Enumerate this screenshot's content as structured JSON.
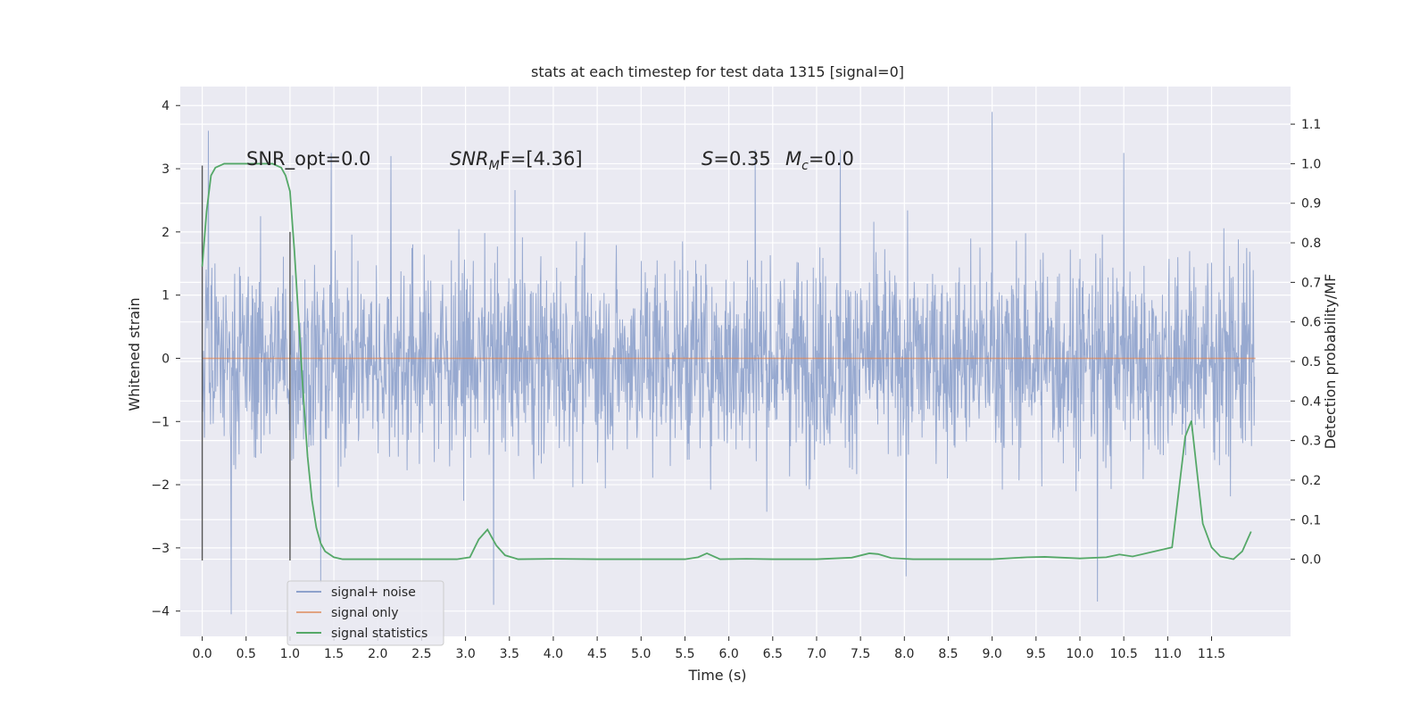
{
  "chart_data": {
    "type": "line",
    "title": "stats at each timestep for test data 1315 [signal=0]",
    "xlabel": "Time (s)",
    "ylabel": "Whitened strain",
    "y2label": "Detection probability/MF",
    "xlim": [
      -0.25,
      12.4
    ],
    "ylim": [
      -4.4,
      4.3
    ],
    "y2lim": [
      -0.195,
      1.195
    ],
    "x_ticks": [
      "0.0",
      "0.5",
      "1.0",
      "1.5",
      "2.0",
      "2.5",
      "3.0",
      "3.5",
      "4.0",
      "4.5",
      "5.0",
      "5.5",
      "6.0",
      "6.5",
      "7.0",
      "7.5",
      "8.0",
      "8.5",
      "9.0",
      "9.5",
      "10.0",
      "10.5",
      "11.0",
      "11.5"
    ],
    "y_ticks": [
      "4",
      "3",
      "2",
      "1",
      "0",
      "−1",
      "−2",
      "−3",
      "−4"
    ],
    "y2_ticks": [
      "1.1",
      "1.0",
      "0.9",
      "0.8",
      "0.7",
      "0.6",
      "0.5",
      "0.4",
      "0.3",
      "0.2",
      "0.1",
      "0.0"
    ],
    "grid": true,
    "legend_position": "lower-left",
    "annotations": {
      "snr_opt": "SNR_opt=0.0",
      "snr_mf_var": "SNR",
      "snr_mf_sub": "M",
      "snr_mf_rest": "F=[4.36]",
      "s_var": "S",
      "s_val": "=0.35",
      "mc_var": "M",
      "mc_sub": "c",
      "mc_val": "=0.0"
    },
    "colors": {
      "noise": "#8ea2cc",
      "signal_only": "#dd8452",
      "statistics": "#55a868",
      "background": "#eaeaf2",
      "vlines": "#555555"
    },
    "vertical_lines": [
      {
        "x": 0.0,
        "y_range": [
          -3.2,
          3.05
        ]
      },
      {
        "x": 1.0,
        "y_range": [
          -3.2,
          2.0
        ]
      }
    ],
    "series": [
      {
        "name": "signal+ noise",
        "axis": "left",
        "x_range": [
          0.0,
          11.99
        ],
        "typical_envelope": [
          -2.3,
          2.3
        ],
        "peaks": [
          {
            "x": 0.07,
            "y": 3.6
          },
          {
            "x": 0.33,
            "y": -4.05
          },
          {
            "x": 1.35,
            "y": -3.55
          },
          {
            "x": 1.47,
            "y": 3.25
          },
          {
            "x": 2.15,
            "y": 3.2
          },
          {
            "x": 3.32,
            "y": -3.9
          },
          {
            "x": 6.3,
            "y": 3.3
          },
          {
            "x": 7.27,
            "y": 3.3
          },
          {
            "x": 8.02,
            "y": -3.45
          },
          {
            "x": 9.0,
            "y": 3.9
          },
          {
            "x": 10.2,
            "y": -3.85
          },
          {
            "x": 10.5,
            "y": 3.25
          }
        ]
      },
      {
        "name": "signal only",
        "axis": "left",
        "x": [
          0.0,
          12.0
        ],
        "y": [
          0.0,
          0.0
        ]
      },
      {
        "name": "signal statistics",
        "axis": "right",
        "x": [
          0.0,
          0.05,
          0.1,
          0.15,
          0.25,
          0.4,
          0.6,
          0.8,
          0.9,
          0.95,
          1.0,
          1.05,
          1.1,
          1.15,
          1.2,
          1.25,
          1.3,
          1.35,
          1.4,
          1.5,
          1.6,
          1.8,
          2.0,
          2.5,
          2.9,
          3.05,
          3.15,
          3.25,
          3.35,
          3.45,
          3.6,
          4.0,
          4.5,
          5.0,
          5.5,
          5.65,
          5.75,
          5.9,
          6.2,
          6.5,
          7.0,
          7.4,
          7.6,
          7.7,
          7.85,
          8.1,
          9.0,
          9.4,
          9.6,
          10.0,
          10.3,
          10.45,
          10.6,
          11.05,
          11.2,
          11.27,
          11.32,
          11.4,
          11.5,
          11.6,
          11.75,
          11.85,
          11.95
        ],
        "y": [
          0.74,
          0.88,
          0.97,
          0.99,
          1.0,
          1.0,
          1.0,
          1.0,
          0.99,
          0.97,
          0.93,
          0.78,
          0.6,
          0.42,
          0.26,
          0.15,
          0.08,
          0.04,
          0.02,
          0.005,
          0.0,
          0.0,
          0.0,
          0.0,
          0.0,
          0.005,
          0.05,
          0.075,
          0.035,
          0.01,
          0.0,
          0.001,
          0.0,
          0.0,
          0.0,
          0.005,
          0.015,
          0.0,
          0.001,
          0.0,
          0.0,
          0.004,
          0.015,
          0.013,
          0.003,
          0.0,
          0.0,
          0.005,
          0.006,
          0.002,
          0.005,
          0.012,
          0.007,
          0.03,
          0.31,
          0.35,
          0.25,
          0.09,
          0.03,
          0.007,
          0.0,
          0.02,
          0.07
        ]
      }
    ]
  }
}
